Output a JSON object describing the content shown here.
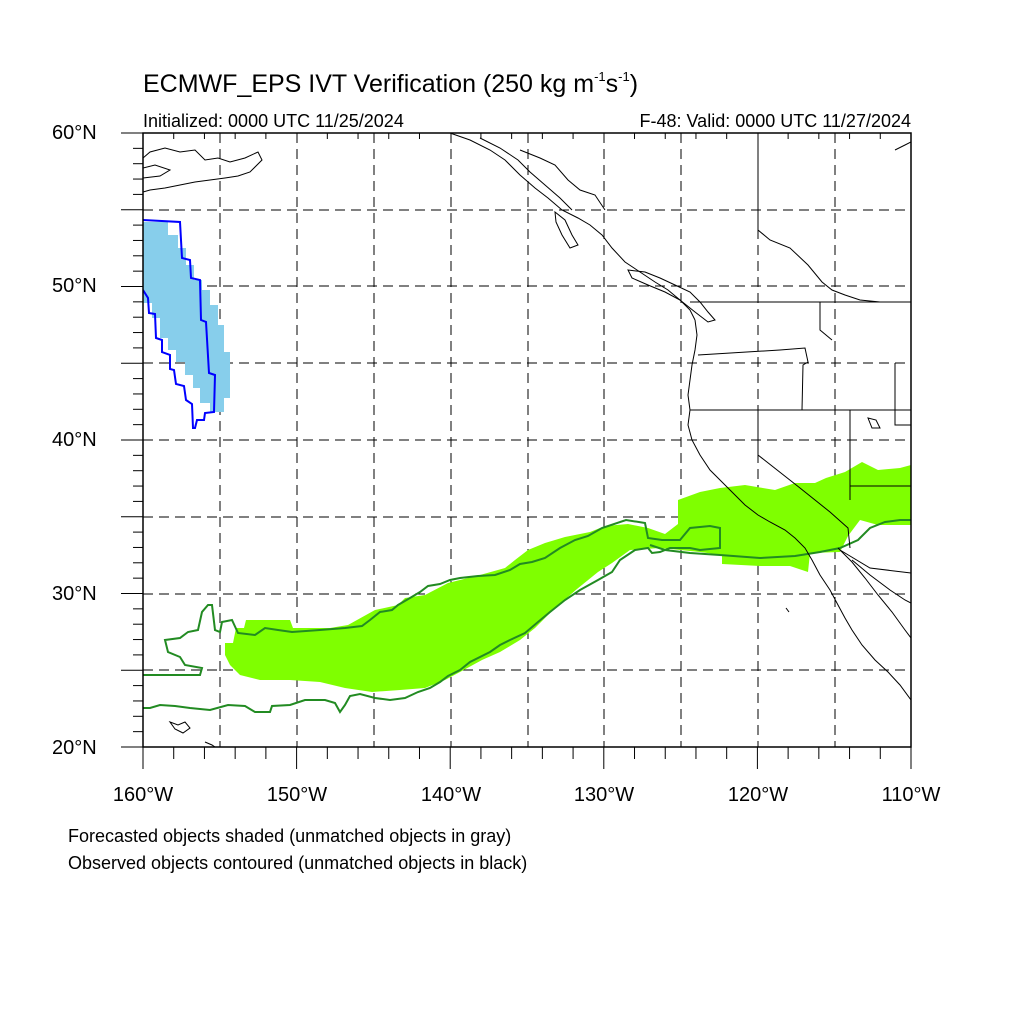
{
  "title": {
    "main": "ECMWF_EPS IVT Verification (250 kg m",
    "exp1": "-1",
    "mid": "s",
    "exp2": "-1",
    "end": ")"
  },
  "subtitle_left": "Initialized: 0000 UTC 11/25/2024",
  "subtitle_right": "F-48: Valid: 0000 UTC 11/27/2024",
  "lat_labels": [
    "60°N",
    "50°N",
    "40°N",
    "30°N",
    "20°N"
  ],
  "lon_labels": [
    "160°W",
    "150°W",
    "140°W",
    "130°W",
    "120°W",
    "110°W"
  ],
  "notes": [
    "Forecasted objects shaded (unmatched objects in gray)",
    "Observed objects contoured (unmatched objects in black)"
  ],
  "colors": {
    "forecast_blue": "#87ceeb",
    "observed_blue": "#0000ff",
    "forecast_green": "#7fff00",
    "observed_green": "#228b22",
    "coastline": "#000000",
    "grid": "#000000"
  }
}
